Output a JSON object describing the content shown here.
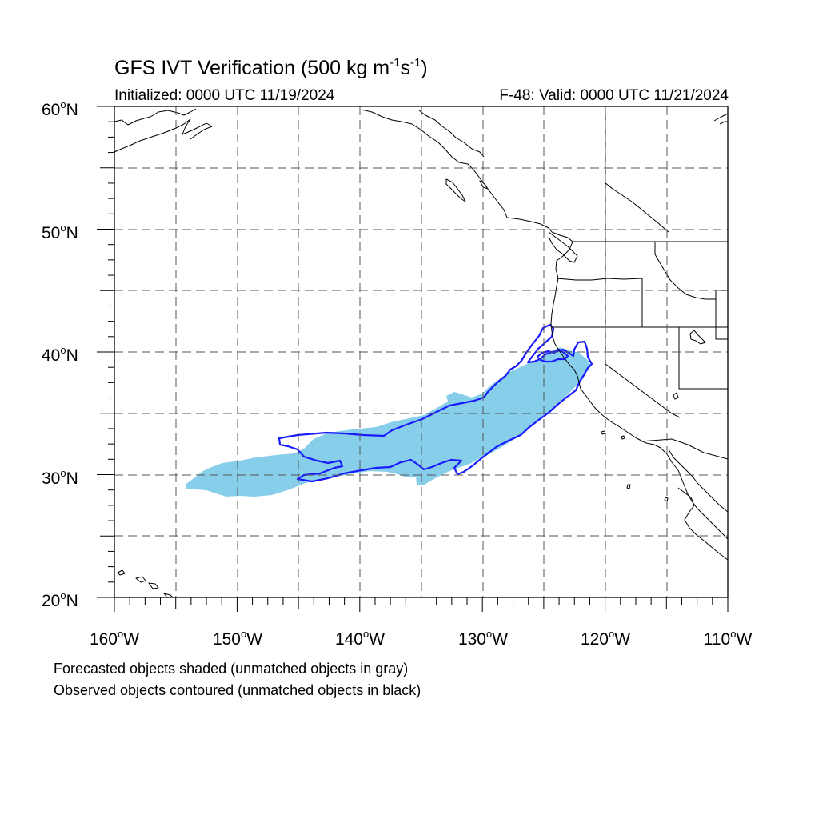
{
  "map": {
    "title_prefix": "GFS IVT Verification (500 kg m",
    "title_exp1": "-1",
    "title_mid": "s",
    "title_exp2": "-1",
    "title_suffix": ")",
    "initialized": "Initialized: 0000 UTC 11/19/2024",
    "valid": "F-48: Valid: 0000 UTC 11/21/2024",
    "lat_labels": [
      "60",
      "50",
      "40",
      "30",
      "20"
    ],
    "lat_suffix": "N",
    "lon_labels": [
      "160",
      "150",
      "140",
      "130",
      "120",
      "110"
    ],
    "lon_suffix": "W",
    "degree_symbol": "o",
    "notes": [
      "Forecasted objects shaded (unmatched objects in gray)",
      "Observed objects contoured (unmatched objects in black)"
    ],
    "extent": {
      "lon_min": -160,
      "lon_max": -110,
      "lat_min": 20,
      "lat_max": 60
    },
    "colors": {
      "forecast_fill": "#87ceeb",
      "observed_contour": "#1a1aff",
      "coastline": "#000000",
      "gridline": "#555555"
    }
  }
}
